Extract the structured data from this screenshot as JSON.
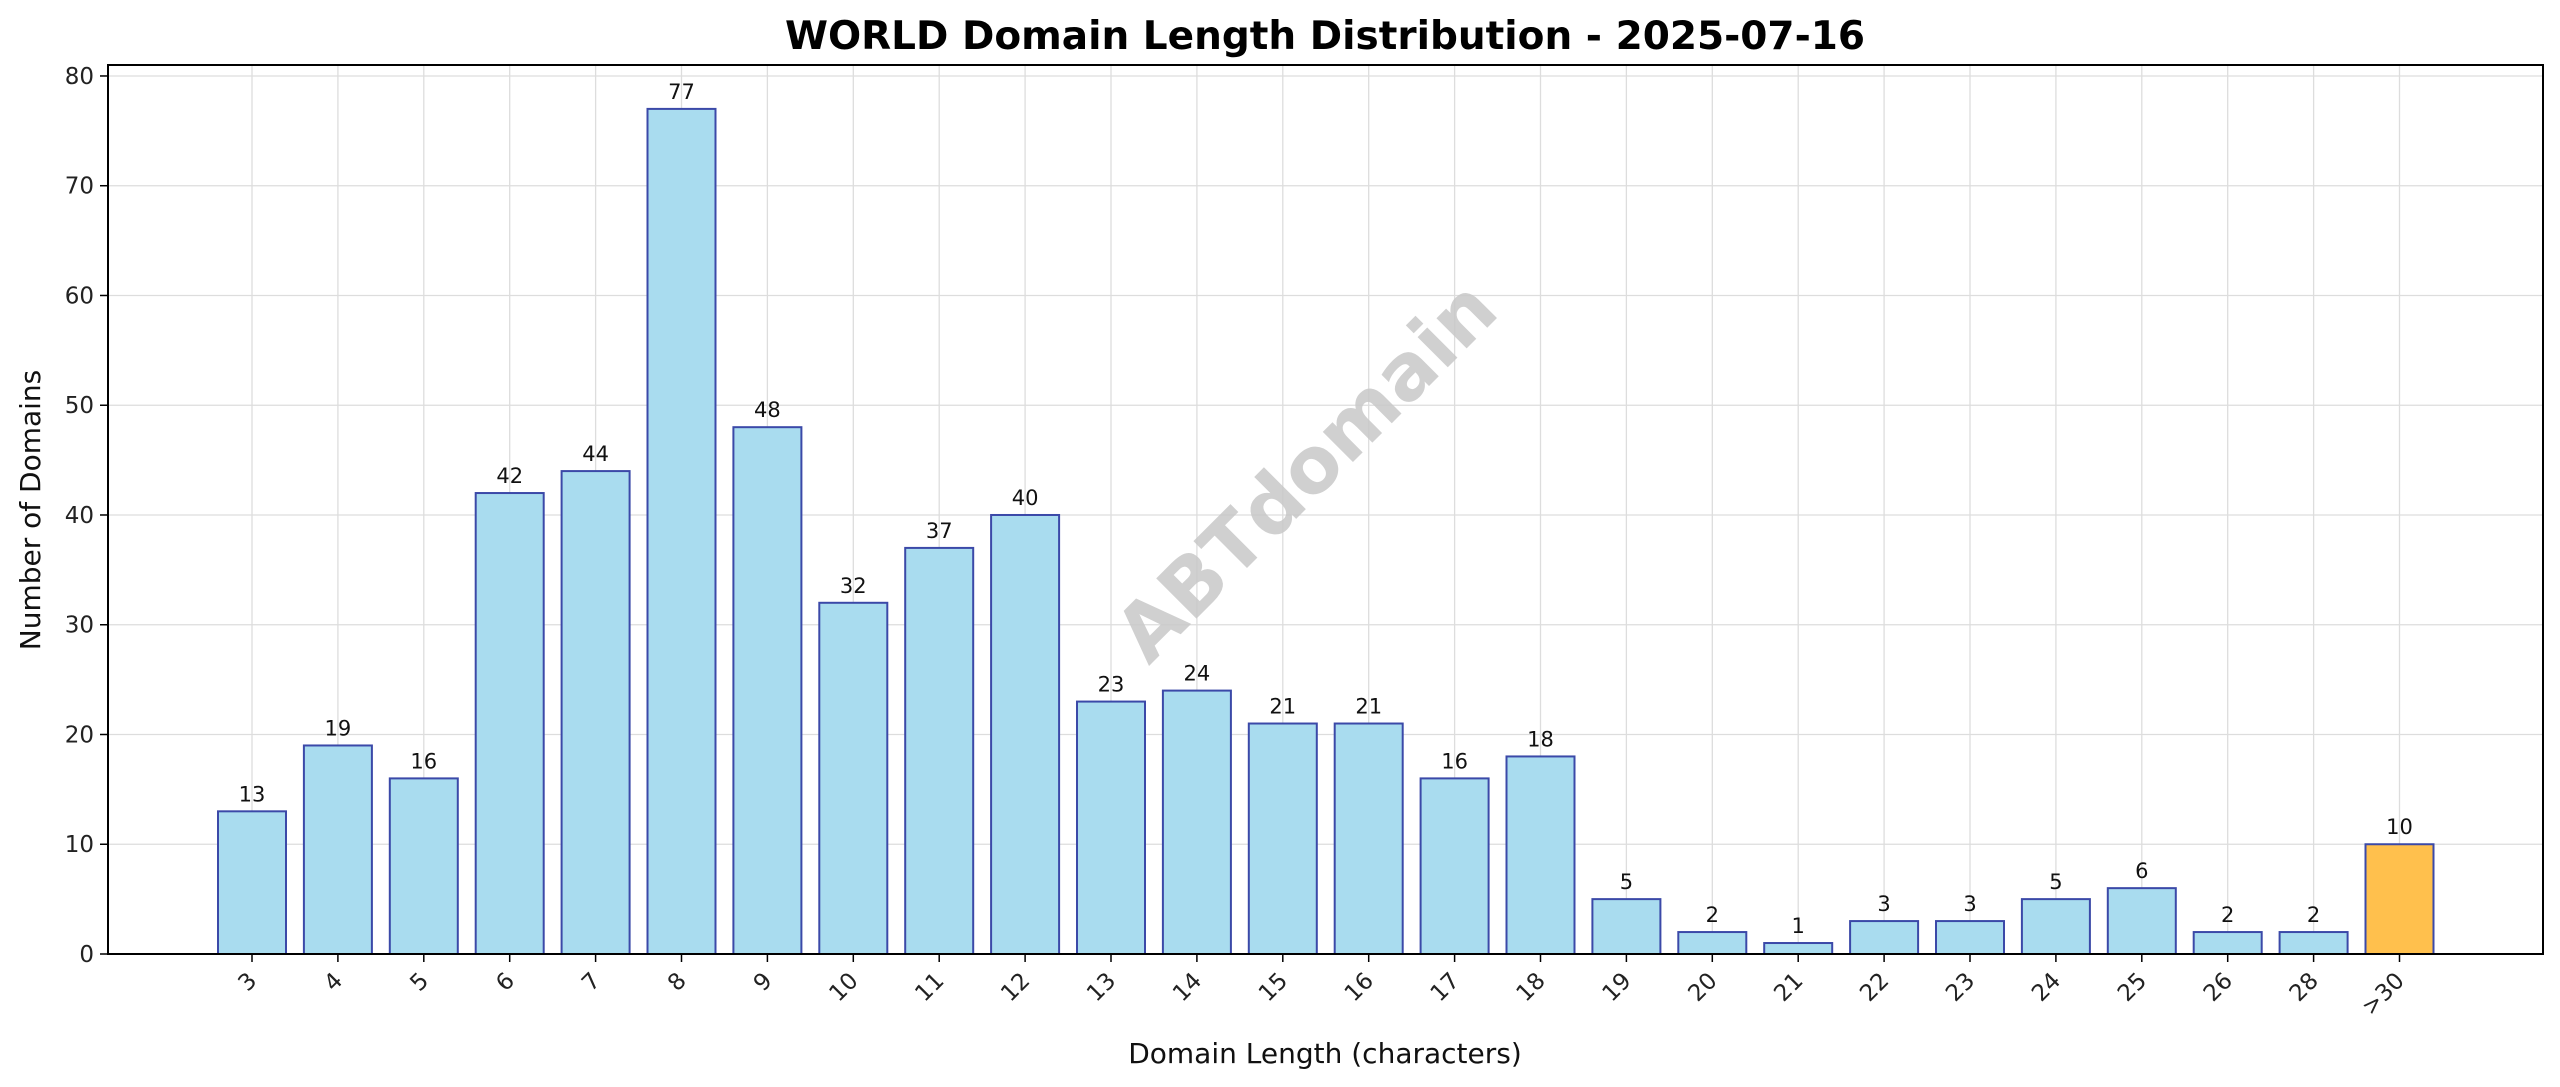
{
  "chart_data": {
    "type": "bar",
    "title": "WORLD Domain Length Distribution - 2025-07-16",
    "xlabel": "Domain Length (characters)",
    "ylabel": "Number of Domains",
    "watermark": "ABTdomain",
    "categories": [
      "3",
      "4",
      "5",
      "6",
      "7",
      "8",
      "9",
      "10",
      "11",
      "12",
      "13",
      "14",
      "15",
      "16",
      "17",
      "18",
      "19",
      "20",
      "21",
      "22",
      "23",
      "24",
      "25",
      "26",
      "28",
      ">30"
    ],
    "values": [
      13,
      19,
      16,
      42,
      44,
      77,
      48,
      32,
      37,
      40,
      23,
      24,
      21,
      21,
      16,
      18,
      5,
      2,
      1,
      3,
      3,
      5,
      6,
      2,
      2,
      10
    ],
    "highlight_category": ">30",
    "ylim": [
      0,
      81
    ],
    "yticks": [
      0,
      10,
      20,
      30,
      40,
      50,
      60,
      70,
      80
    ],
    "grid": true,
    "colors": {
      "bar_fill": "#a9dcef",
      "bar_edge": "#3b49a8",
      "highlight_fill": "#ffc04d",
      "grid": "#dddddd"
    }
  }
}
